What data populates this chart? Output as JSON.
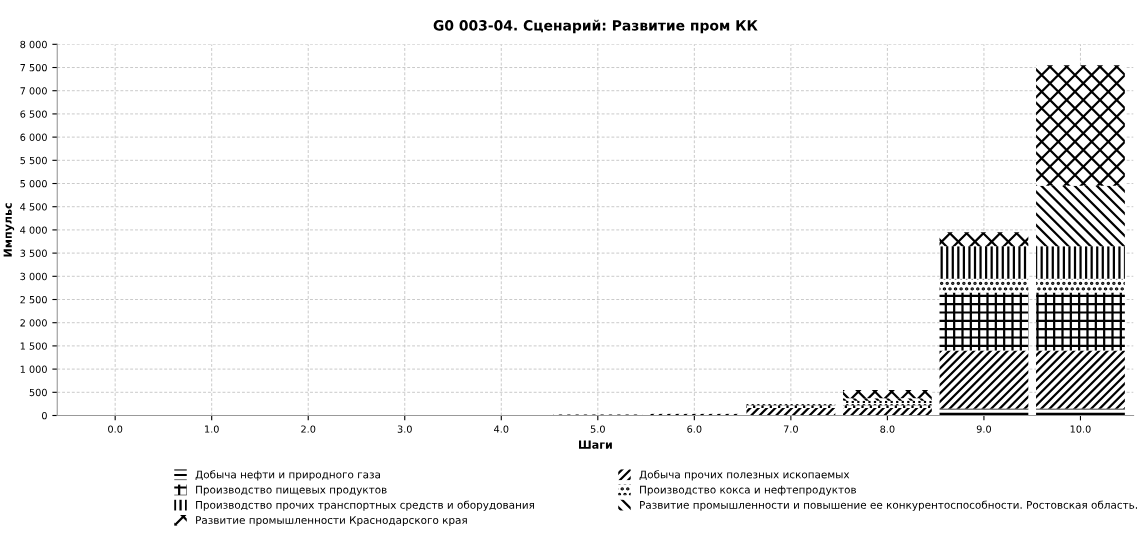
{
  "chart_data": {
    "type": "bar",
    "title": "G0 003-04. Сценарий: Развитие пром КК",
    "xlabel": "Шаги",
    "ylabel": "Импульс",
    "categories": [
      "0.0",
      "1.0",
      "2.0",
      "3.0",
      "4.0",
      "5.0",
      "6.0",
      "7.0",
      "8.0",
      "9.0",
      "10.0"
    ],
    "stacked": true,
    "series": [
      {
        "name": "Добыча нефти и природного газа",
        "color": "#000000",
        "values": [
          0,
          0,
          0,
          0,
          0,
          0,
          0,
          10,
          10,
          150,
          150
        ]
      },
      {
        "name": "Добыча прочих полезных ископаемых",
        "color": "#000000",
        "values": [
          0,
          0,
          0,
          0,
          10,
          20,
          40,
          150,
          150,
          1250,
          1250
        ]
      },
      {
        "name": "Производство пищевых продуктов",
        "color": "#000000",
        "values": [
          0,
          0,
          0,
          0,
          0,
          0,
          0,
          60,
          60,
          1250,
          1250
        ]
      },
      {
        "name": "Производство кокса и нефтепродуктов",
        "color": "#000000",
        "values": [
          0,
          0,
          0,
          0,
          0,
          0,
          10,
          70,
          50,
          300,
          300
        ]
      },
      {
        "name": "Производство прочих транспортных средств и оборудования",
        "color": "#000000",
        "values": [
          0,
          0,
          0,
          0,
          0,
          0,
          0,
          0,
          50,
          700,
          700
        ]
      },
      {
        "name": "Развитие промышленности и повышение ее конкурентоспособности. Ростовская область.",
        "color": "#000000",
        "values": [
          0,
          0,
          0,
          0,
          0,
          0,
          0,
          0,
          50,
          0,
          1300
        ]
      },
      {
        "name": "Развитие промышленности Краснодарского края",
        "color": "#000000",
        "values": [
          0,
          0,
          0,
          0,
          0,
          0,
          0,
          0,
          180,
          300,
          2600
        ]
      }
    ],
    "ylim": [
      0,
      8000
    ],
    "yticks": [
      0,
      500,
      {
        "value": 1000,
        "label": "1 000"
      },
      {
        "value": 1500,
        "label": "1 500"
      },
      {
        "value": 2000,
        "label": "2 000"
      },
      {
        "value": 2500,
        "label": "2 500"
      },
      {
        "value": 3000,
        "label": "3 000"
      },
      {
        "value": 3500,
        "label": "3 500"
      },
      {
        "value": 4000,
        "label": "4 000"
      },
      {
        "value": 4500,
        "label": "4 500"
      },
      {
        "value": 5000,
        "label": "5 000"
      },
      {
        "value": 5500,
        "label": "5 500"
      },
      {
        "value": 6000,
        "label": "6 000"
      },
      {
        "value": 6500,
        "label": "6 500"
      },
      {
        "value": 7000,
        "label": "7 000"
      },
      {
        "value": 7500,
        "label": "7 500"
      },
      {
        "value": 8000,
        "label": "8 000"
      }
    ],
    "grid": true,
    "legend": "bottom"
  }
}
